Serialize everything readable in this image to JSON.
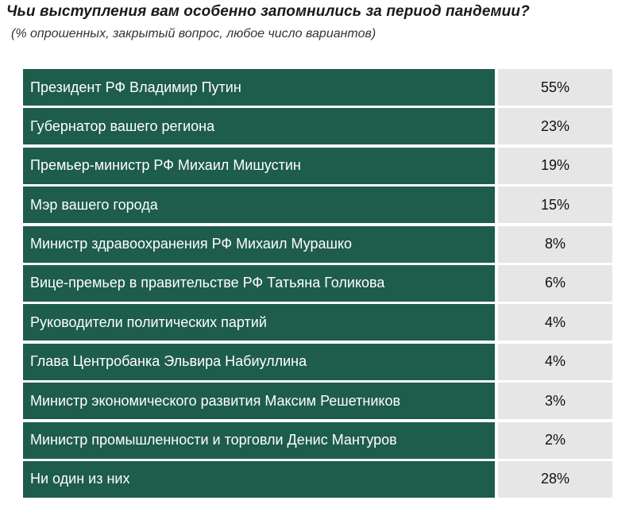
{
  "chart_data": {
    "type": "table",
    "title": "Чьи выступления вам особенно запомнились за период пандемии?",
    "subtitle": "(% опрошенных, закрытый вопрос, любое число вариантов)",
    "rows": [
      {
        "label": "Президент РФ Владимир Путин",
        "value": "55%"
      },
      {
        "label": "Губернатор вашего региона",
        "value": "23%"
      },
      {
        "label": "Премьер-министр РФ Михаил Мишустин",
        "value": "19%"
      },
      {
        "label": "Мэр вашего города",
        "value": "15%"
      },
      {
        "label": "Министр здравоохранения РФ Михаил Мурашко",
        "value": "8%"
      },
      {
        "label": "Вице-премьер в правительстве РФ Татьяна Голикова",
        "value": "6%"
      },
      {
        "label": "Руководители политических партий",
        "value": "4%"
      },
      {
        "label": "Глава Центробанка Эльвира Набиуллина",
        "value": "4%"
      },
      {
        "label": "Министр экономического развития Максим Решетников",
        "value": "3%"
      },
      {
        "label": "Министр промышленности и торговли Денис Мантуров",
        "value": "2%"
      },
      {
        "label": "Ни один из них",
        "value": "28%"
      }
    ],
    "colors": {
      "label_bg": "#1e5c4c",
      "value_bg": "#e6e6e6"
    }
  }
}
